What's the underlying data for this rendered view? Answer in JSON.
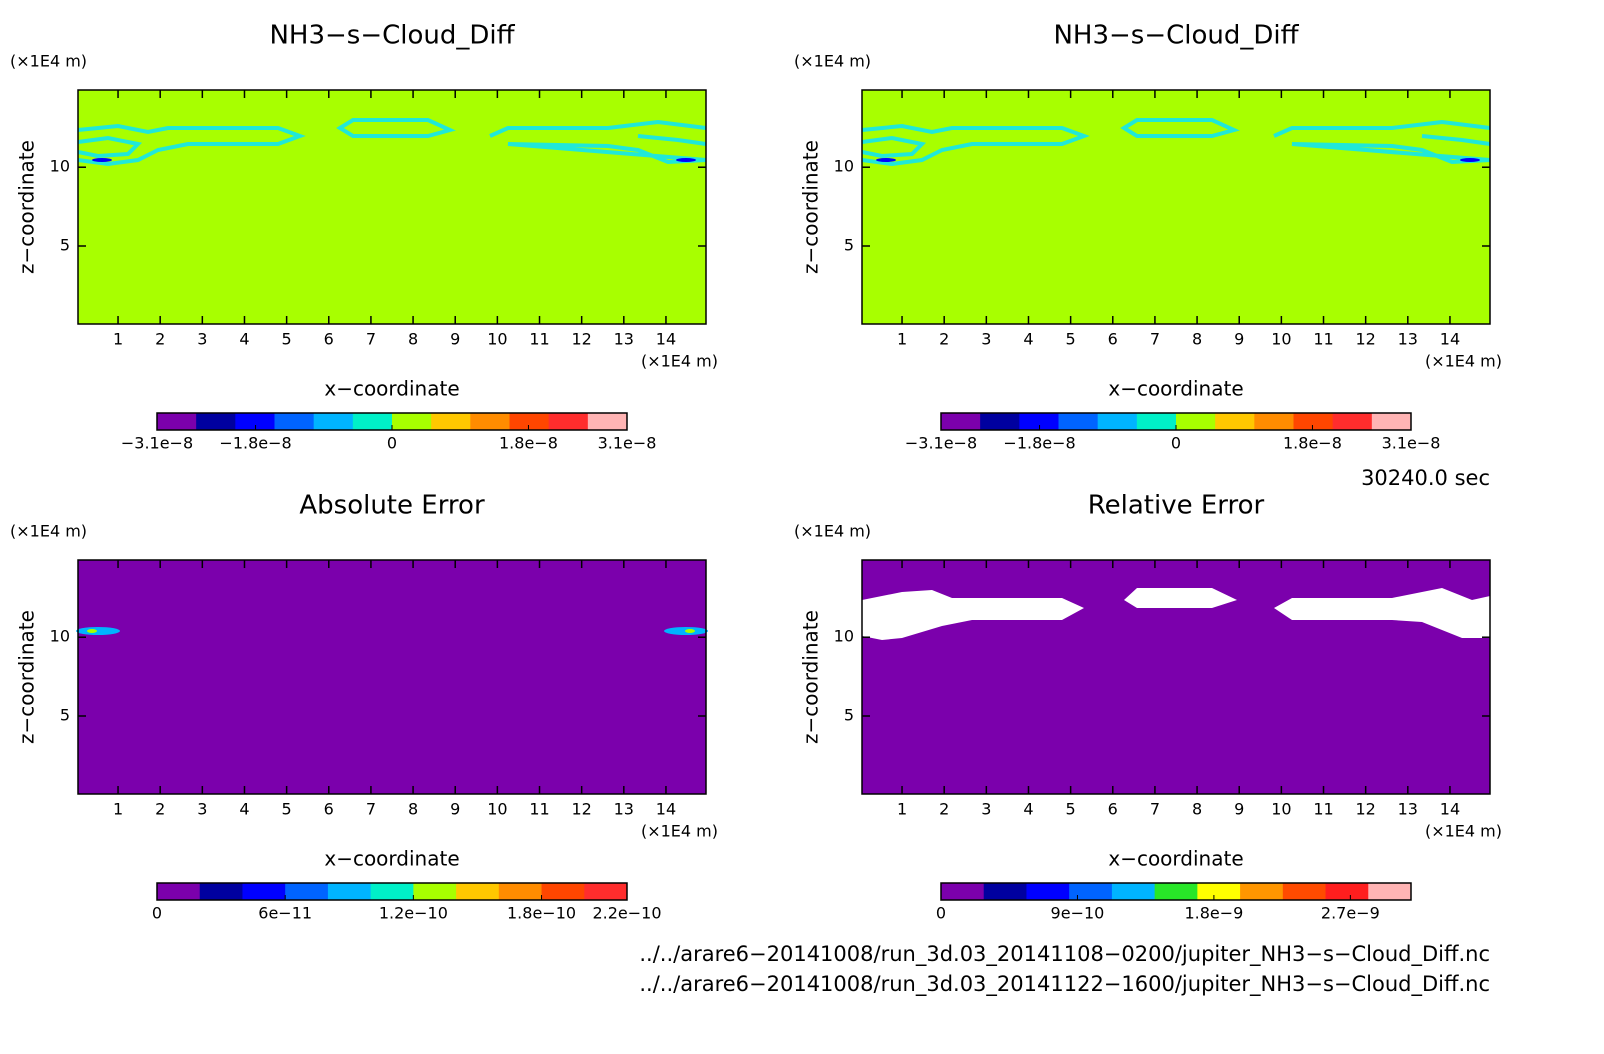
{
  "chart_data": [
    {
      "type": "contour",
      "title": "NH3−s−Cloud_Diff",
      "xlabel": "x−coordinate",
      "ylabel": "z−coordinate",
      "xunit": "(×1E4 m)",
      "yunit": "(×1E4 m)",
      "xlim": [
        0.05,
        14.95
      ],
      "ylim": [
        0.05,
        14.9
      ],
      "xticks": [
        1,
        2,
        3,
        4,
        5,
        6,
        7,
        8,
        9,
        10,
        11,
        12,
        13,
        14
      ],
      "yticks": [
        5,
        10
      ],
      "background": "#a8ff00",
      "colorbar": {
        "clim": [
          -3.1e-08,
          3.1e-08
        ],
        "colors": [
          "#7b00ac",
          "#00009f",
          "#0000ff",
          "#0064ff",
          "#00b4ff",
          "#00f0c8",
          "#a8ff00",
          "#ffc800",
          "#ff8c00",
          "#ff4600",
          "#ff2d2d",
          "#ffb4b4"
        ],
        "ticks": [
          {
            "value": -3.1e-08,
            "label": "−3.1e−8"
          },
          {
            "value": -1.8e-08,
            "label": "−1.8e−8"
          },
          0,
          {
            "value": 1.8e-08,
            "label": "1.8e−8"
          },
          {
            "value": 3.1e-08,
            "label": "3.1e−8"
          }
        ]
      }
    },
    {
      "type": "contour",
      "title": "NH3−s−Cloud_Diff",
      "xlabel": "x−coordinate",
      "ylabel": "z−coordinate",
      "xunit": "(×1E4 m)",
      "yunit": "(×1E4 m)",
      "xlim": [
        0.05,
        14.95
      ],
      "ylim": [
        0.05,
        14.9
      ],
      "xticks": [
        1,
        2,
        3,
        4,
        5,
        6,
        7,
        8,
        9,
        10,
        11,
        12,
        13,
        14
      ],
      "yticks": [
        5,
        10
      ],
      "background": "#a8ff00",
      "colorbar": {
        "clim": [
          -3.1e-08,
          3.1e-08
        ],
        "colors": [
          "#7b00ac",
          "#00009f",
          "#0000ff",
          "#0064ff",
          "#00b4ff",
          "#00f0c8",
          "#a8ff00",
          "#ffc800",
          "#ff8c00",
          "#ff4600",
          "#ff2d2d",
          "#ffb4b4"
        ],
        "ticks": [
          {
            "value": -3.1e-08,
            "label": "−3.1e−8"
          },
          {
            "value": -1.8e-08,
            "label": "−1.8e−8"
          },
          0,
          {
            "value": 1.8e-08,
            "label": "1.8e−8"
          },
          {
            "value": 3.1e-08,
            "label": "3.1e−8"
          }
        ]
      }
    },
    {
      "type": "contour",
      "title": "Absolute Error",
      "xlabel": "x−coordinate",
      "ylabel": "z−coordinate",
      "xunit": "(×1E4 m)",
      "yunit": "(×1E4 m)",
      "xlim": [
        0.05,
        14.95
      ],
      "ylim": [
        0.05,
        14.9
      ],
      "xticks": [
        1,
        2,
        3,
        4,
        5,
        6,
        7,
        8,
        9,
        10,
        11,
        12,
        13,
        14
      ],
      "yticks": [
        5,
        10
      ],
      "background": "#7b00ac",
      "colorbar": {
        "clim": [
          0,
          2.2e-10
        ],
        "colors": [
          "#7b00ac",
          "#00009f",
          "#0000ff",
          "#0064ff",
          "#00b4ff",
          "#00f0c8",
          "#a8ff00",
          "#ffc800",
          "#ff8c00",
          "#ff4600",
          "#ff2d2d"
        ],
        "ticks": [
          0,
          {
            "value": 6e-11,
            "label": "6e−11"
          },
          {
            "value": 1.2e-10,
            "label": "1.2e−10"
          },
          {
            "value": 1.8e-10,
            "label": "1.8e−10"
          },
          {
            "value": 2.2e-10,
            "label": "2.2e−10"
          }
        ]
      }
    },
    {
      "type": "contour",
      "title": "Relative Error",
      "xlabel": "x−coordinate",
      "ylabel": "z−coordinate",
      "xunit": "(×1E4 m)",
      "yunit": "(×1E4 m)",
      "xlim": [
        0.05,
        14.95
      ],
      "ylim": [
        0.05,
        14.9
      ],
      "xticks": [
        1,
        2,
        3,
        4,
        5,
        6,
        7,
        8,
        9,
        10,
        11,
        12,
        13,
        14
      ],
      "yticks": [
        5,
        10
      ],
      "background": "#7b00ac",
      "colorbar": {
        "clim": [
          0,
          3.1e-09
        ],
        "colors": [
          "#7b00ac",
          "#00009f",
          "#0000ff",
          "#0064ff",
          "#00b4ff",
          "#28e628",
          "#ffff00",
          "#ff9600",
          "#ff4b00",
          "#ff1e1e",
          "#ffb4b4"
        ],
        "ticks": [
          0,
          {
            "value": 9e-10,
            "label": "9e−10"
          },
          {
            "value": 1.8e-09,
            "label": "1.8e−9"
          },
          {
            "value": 2.7e-09,
            "label": "2.7e−9"
          }
        ]
      }
    }
  ],
  "footer": {
    "time": "30240.0 sec",
    "files": [
      "../../arare6−20141008/run_3d.03_20141108−0200/jupiter_NH3−s−Cloud_Diff.nc",
      "../../arare6−20141008/run_3d.03_20141122−1600/jupiter_NH3−s−Cloud_Diff.nc"
    ]
  }
}
